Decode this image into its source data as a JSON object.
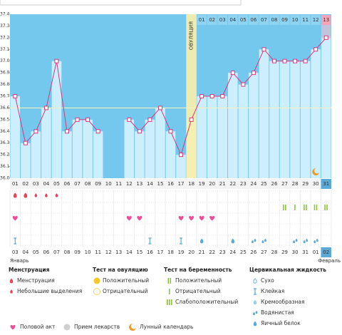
{
  "chart_data": {
    "type": "line",
    "categories": [
      "01",
      "02",
      "03",
      "04",
      "05",
      "06",
      "07",
      "08",
      "09",
      "10",
      "11",
      "12",
      "13",
      "14",
      "15",
      "16",
      "17",
      "18",
      "19",
      "20",
      "21",
      "22",
      "23",
      "24",
      "25",
      "26",
      "27",
      "28",
      "29",
      "30",
      "31"
    ],
    "values": [
      36.7,
      36.3,
      36.4,
      36.6,
      37.0,
      36.4,
      36.5,
      36.5,
      36.4,
      null,
      null,
      36.5,
      36.4,
      36.5,
      36.6,
      36.4,
      36.2,
      36.5,
      36.7,
      36.7,
      36.7,
      36.9,
      36.8,
      36.9,
      37.1,
      37.0,
      37.0,
      37.0,
      37.0,
      37.1,
      37.2
    ],
    "color": "#d6397e",
    "ylim": [
      36.0,
      37.4
    ],
    "yticks": [
      {
        "value": 36,
        "label": "36.0"
      },
      36.1,
      36.2,
      36.3,
      36.4,
      36.5,
      36.6,
      36.7,
      36.8,
      36.9,
      {
        "value": 37,
        "label": "37.0"
      },
      37.1,
      37.2,
      37.3,
      37.4
    ],
    "coverline": 36.6,
    "ovulation_label": "ОВУЛЯЦИЯ",
    "phase_days": [
      "01",
      "02",
      "03",
      "04",
      "05",
      "06",
      "07",
      "08",
      "09",
      "10",
      "11",
      "12",
      "13"
    ],
    "dates": [
      "03",
      "04",
      "05",
      "06",
      "07",
      "08",
      "09",
      "10",
      "11",
      "12",
      "13",
      "14",
      "15",
      "16",
      "17",
      "18",
      "19",
      "20",
      "21",
      "22",
      "23",
      "24",
      "25",
      "26",
      "27",
      "28",
      "29",
      "30",
      "31",
      "01",
      "02"
    ],
    "months": [
      "Январь",
      "Февраль"
    ]
  },
  "legend": {
    "menstruation": {
      "title": "Менструация",
      "items": [
        "Менструация",
        "Небольшие выделения"
      ]
    },
    "ovulation_test": {
      "title": "Тест на овуляцию",
      "items": [
        "Положительный",
        "Отрицательный"
      ]
    },
    "pregnancy_test": {
      "title": "Тест на беременность",
      "items": [
        "Положительный",
        "Отрицательный",
        "Слабоположительный"
      ]
    },
    "cervical_fluid": {
      "title": "Цервикальная жидкость",
      "items": [
        "Сухо",
        "Клейкая",
        "Кремообразная",
        "Водянистая",
        "Яичный белок"
      ]
    },
    "other": [
      "Половой акт",
      "Прием лекарств",
      "Лунный календарь"
    ]
  }
}
